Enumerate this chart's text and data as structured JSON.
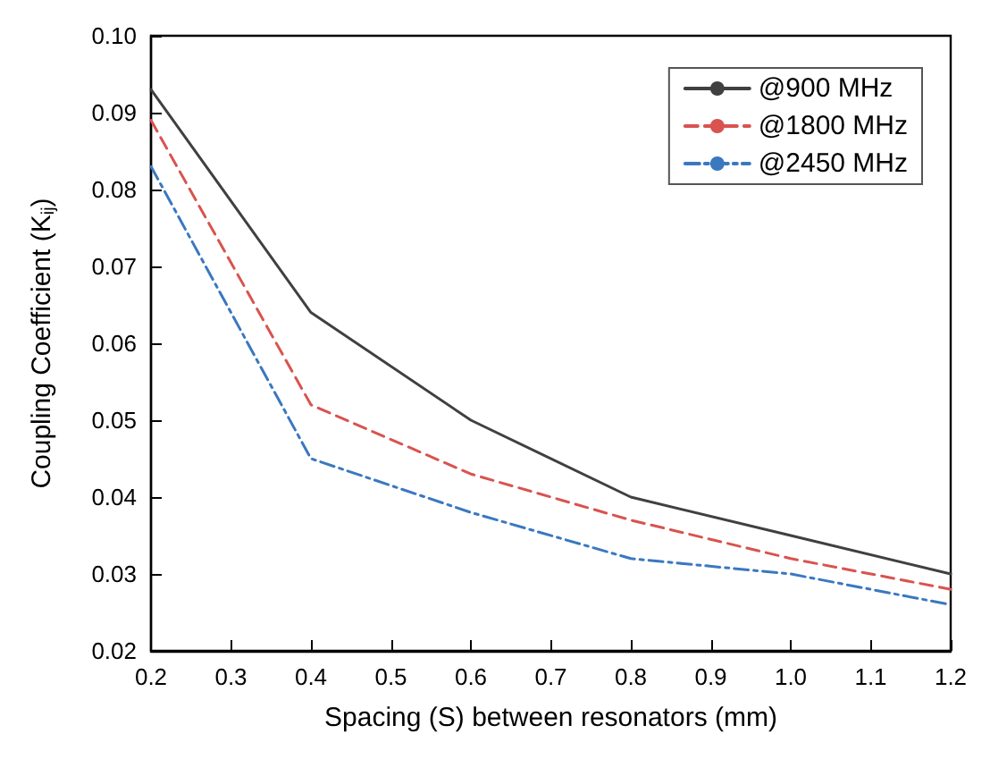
{
  "chart_data": {
    "type": "line",
    "xlabel": "Spacing (S) between resonators (mm)",
    "ylabel": "Coupling Coefficient (K$_{ij}$)",
    "x": [
      0.2,
      0.4,
      0.6,
      0.8,
      1.0,
      1.2
    ],
    "series": [
      {
        "name": "@900 MHz",
        "color": "#404040",
        "line_style": "solid",
        "values": [
          0.093,
          0.064,
          0.05,
          0.04,
          0.035,
          0.03
        ]
      },
      {
        "name": "@1800 MHz",
        "color": "#d9534f",
        "line_style": "dashed",
        "values": [
          0.089,
          0.052,
          0.043,
          0.037,
          0.032,
          0.028
        ]
      },
      {
        "name": "@2450 MHz",
        "color": "#3a78c0",
        "line_style": "dashdot",
        "values": [
          0.083,
          0.045,
          0.038,
          0.032,
          0.03,
          0.026
        ]
      }
    ],
    "xlim": [
      0.2,
      1.2
    ],
    "xticks": [
      0.2,
      0.3,
      0.4,
      0.5,
      0.6,
      0.7,
      0.8,
      0.9,
      {
        "value": 1,
        "label": "1.0"
      },
      1.1,
      1.2
    ],
    "ylim": [
      0.02,
      0.1
    ],
    "yticks": [
      0.02,
      0.03,
      0.04,
      0.05,
      0.06,
      0.07,
      0.08,
      0.09,
      {
        "value": 0.1,
        "label": "0.10"
      }
    ],
    "grid": false,
    "legend": "top right",
    "marker": "none"
  }
}
